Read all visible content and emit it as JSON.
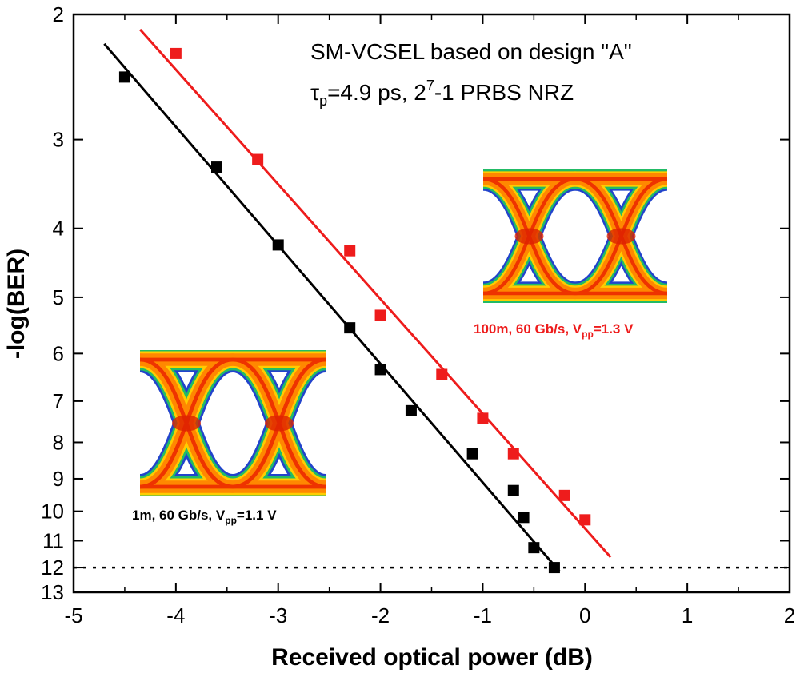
{
  "chart_data": {
    "type": "scatter",
    "xlabel": "Received optical power (dB)",
    "ylabel": "-log(BER)",
    "xlim": [
      -5,
      2
    ],
    "x_ticks": [
      -5,
      -4,
      -3,
      -2,
      -1,
      0,
      1,
      2
    ],
    "x_tick_labels": [
      "-5",
      "-4",
      "-3",
      "-2",
      "-1",
      "0",
      "1",
      "2"
    ],
    "ylim": [
      2,
      13
    ],
    "y_scale": "log(-log(BER)), inverted",
    "y_ticks": [
      2,
      3,
      4,
      5,
      6,
      7,
      8,
      9,
      10,
      11,
      12,
      13
    ],
    "y_tick_labels": [
      "2",
      "3",
      "4",
      "5",
      "6",
      "7",
      "8",
      "9",
      "10",
      "11",
      "12",
      "13"
    ],
    "reference_line": {
      "y": 12,
      "style": "dotted"
    },
    "annotation": {
      "line1": "SM-VCSEL based on design \"A\"",
      "tau": "τ",
      "tau_sub": "p",
      "tau_value": "=4.9 ps, 2",
      "sup": "7",
      "rest": "-1 PRBS NRZ"
    },
    "series": [
      {
        "name": "1m, 60 Gb/s, Vpp=1.1 V",
        "color": "#000000",
        "points": [
          {
            "x": -4.5,
            "y": 2.45
          },
          {
            "x": -3.6,
            "y": 3.28
          },
          {
            "x": -3.0,
            "y": 4.22
          },
          {
            "x": -2.3,
            "y": 5.52
          },
          {
            "x": -2.0,
            "y": 6.32
          },
          {
            "x": -1.7,
            "y": 7.22
          },
          {
            "x": -1.1,
            "y": 8.3
          },
          {
            "x": -0.7,
            "y": 9.35
          },
          {
            "x": -0.6,
            "y": 10.2
          },
          {
            "x": -0.5,
            "y": 11.25
          },
          {
            "x": -0.3,
            "y": 12.0
          }
        ],
        "fit": [
          {
            "x": -4.7,
            "y": 2.2
          },
          {
            "x": -0.25,
            "y": 12.15
          }
        ]
      },
      {
        "name": "100m, 60 Gb/s, Vpp=1.3 V",
        "color": "#ee1c1c",
        "points": [
          {
            "x": -4.0,
            "y": 2.27
          },
          {
            "x": -3.2,
            "y": 3.2
          },
          {
            "x": -2.3,
            "y": 4.3
          },
          {
            "x": -2.0,
            "y": 5.3
          },
          {
            "x": -1.4,
            "y": 6.42
          },
          {
            "x": -1.0,
            "y": 7.4
          },
          {
            "x": -0.7,
            "y": 8.3
          },
          {
            "x": -0.2,
            "y": 9.5
          },
          {
            "x": 0.0,
            "y": 10.28
          }
        ],
        "fit": [
          {
            "x": -4.35,
            "y": 2.1
          },
          {
            "x": 0.25,
            "y": 11.6
          }
        ]
      }
    ],
    "insets": [
      {
        "label_main": "1m, 60 Gb/s, V",
        "label_sub": "pp",
        "label_tail": "=1.1 V",
        "label_color": "#000000"
      },
      {
        "label_main": "100m, 60 Gb/s, V",
        "label_sub": "pp",
        "label_tail": "=1.3 V",
        "label_color": "#ee1c1c"
      }
    ]
  }
}
